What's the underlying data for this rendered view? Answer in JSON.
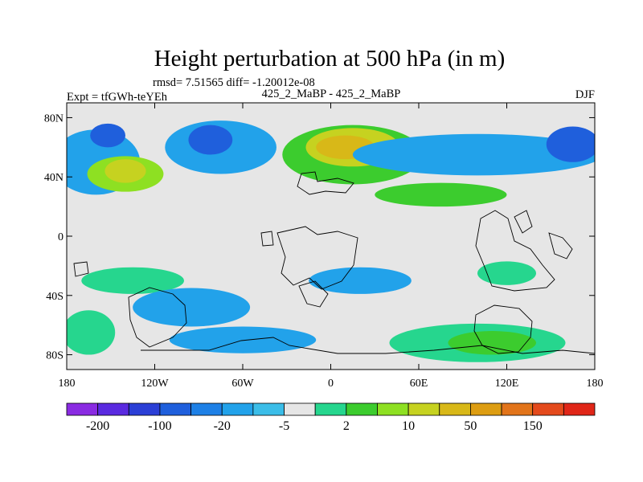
{
  "chart_data": {
    "type": "heatmap",
    "title": "Height perturbation at 500 hPa (in m)",
    "stats_line": "rmsd= 7.51565  diff= -1.20012e-08",
    "left_label": "Expt = tfGWh-teYEh",
    "center_label": "425_2_MaBP - 425_2_MaBP",
    "right_label": "DJF",
    "x_axis": {
      "range": [
        -180,
        180
      ],
      "ticks": [
        -180,
        -120,
        -60,
        0,
        60,
        120,
        180
      ],
      "tick_labels": [
        "180",
        "120W",
        "60W",
        "0",
        "60E",
        "120E",
        "180"
      ]
    },
    "y_axis": {
      "range": [
        -90,
        90
      ],
      "ticks": [
        80,
        40,
        0,
        -40,
        -80
      ],
      "tick_labels": [
        "80N",
        "40N",
        "0",
        "40S",
        "80S"
      ]
    },
    "colorbar": {
      "colors": [
        "#8a2be2",
        "#5a2ae0",
        "#2b3fd6",
        "#1f5fdc",
        "#1e80e6",
        "#22a2ea",
        "#3bbde8",
        "#e6e6e6",
        "#26d68e",
        "#3ccc2e",
        "#8ee022",
        "#c6d220",
        "#d8b818",
        "#dd9d12",
        "#e2741a",
        "#e44a1c",
        "#e02618"
      ],
      "labels": [
        "-200",
        "-100",
        "-20",
        "-5",
        "2",
        "10",
        "50",
        "150"
      ],
      "label_boundaries": [
        1,
        3,
        5,
        7,
        9,
        11,
        13,
        15
      ]
    },
    "regions": [
      {
        "name": "north-pacific-negative",
        "lon": -160,
        "lat": 50,
        "rx": 30,
        "ry": 22,
        "level": 5
      },
      {
        "name": "north-pacific-low-core",
        "lon": -152,
        "lat": 68,
        "rx": 12,
        "ry": 8,
        "level": 3
      },
      {
        "name": "north-pacific-positive",
        "lon": -140,
        "lat": 42,
        "rx": 26,
        "ry": 12,
        "level": 10
      },
      {
        "name": "north-pacific-positive-core",
        "lon": -140,
        "lat": 44,
        "rx": 14,
        "ry": 8,
        "level": 11
      },
      {
        "name": "north-america-negative",
        "lon": -75,
        "lat": 60,
        "rx": 38,
        "ry": 18,
        "level": 5
      },
      {
        "name": "north-america-core",
        "lon": -82,
        "lat": 65,
        "rx": 15,
        "ry": 10,
        "level": 3
      },
      {
        "name": "atlantic-europe-positive",
        "lon": 15,
        "lat": 55,
        "rx": 48,
        "ry": 20,
        "level": 9
      },
      {
        "name": "atlantic-europe-core",
        "lon": 15,
        "lat": 60,
        "rx": 32,
        "ry": 13,
        "level": 11
      },
      {
        "name": "atlantic-europe-peak",
        "lon": 10,
        "lat": 60,
        "rx": 20,
        "ry": 8,
        "level": 12
      },
      {
        "name": "eurasia-negative-band",
        "lon": 100,
        "lat": 55,
        "rx": 85,
        "ry": 14,
        "level": 5
      },
      {
        "name": "siberia-core",
        "lon": 165,
        "lat": 62,
        "rx": 18,
        "ry": 12,
        "level": 3
      },
      {
        "name": "asia-positive",
        "lon": 75,
        "lat": 28,
        "rx": 45,
        "ry": 8,
        "level": 9
      },
      {
        "name": "equatorial-indian-positive",
        "lon": 120,
        "lat": -25,
        "rx": 20,
        "ry": 8,
        "level": 8
      },
      {
        "name": "south-pacific-positive",
        "lon": -135,
        "lat": -30,
        "rx": 35,
        "ry": 9,
        "level": 8
      },
      {
        "name": "south-pacific-negative",
        "lon": -95,
        "lat": -48,
        "rx": 40,
        "ry": 13,
        "level": 5
      },
      {
        "name": "south-atlantic-negative",
        "lon": 20,
        "lat": -30,
        "rx": 35,
        "ry": 9,
        "level": 5
      },
      {
        "name": "southern-ocean-negative",
        "lon": -60,
        "lat": -70,
        "rx": 50,
        "ry": 9,
        "level": 5
      },
      {
        "name": "southern-ocean-positive",
        "lon": 100,
        "lat": -72,
        "rx": 60,
        "ry": 13,
        "level": 8
      },
      {
        "name": "southern-ocean-positive-core",
        "lon": 110,
        "lat": -72,
        "rx": 30,
        "ry": 8,
        "level": 9
      },
      {
        "name": "antarctic-west-positive",
        "lon": -165,
        "lat": -65,
        "rx": 18,
        "ry": 15,
        "level": 8
      }
    ]
  }
}
